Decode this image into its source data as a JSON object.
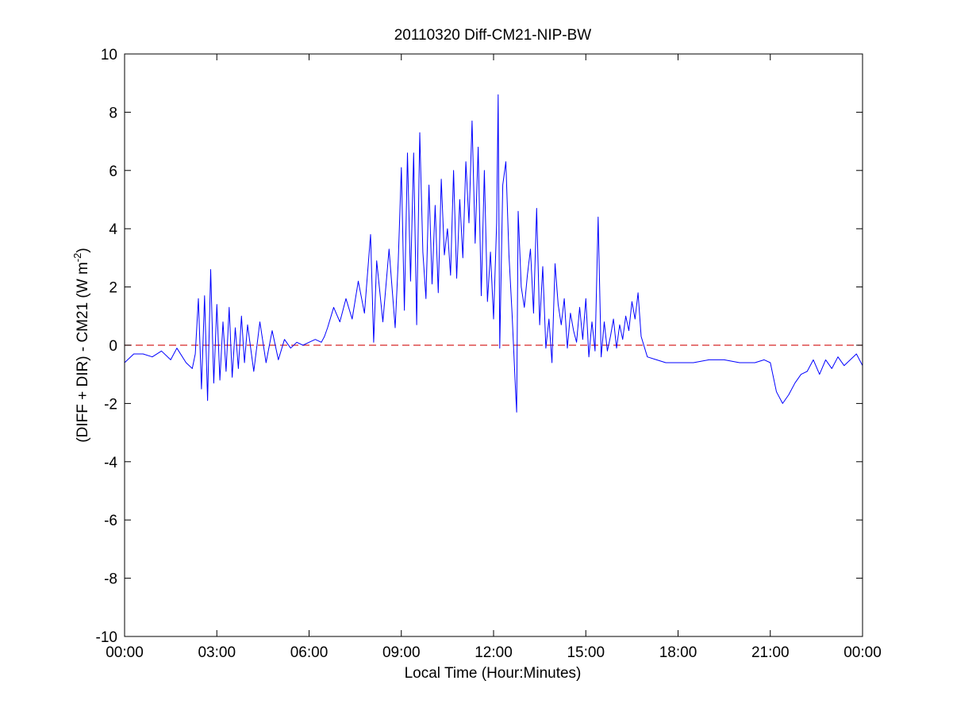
{
  "chart_data": {
    "type": "line",
    "title": "20110320 Diff-CM21-NIP-BW",
    "xlabel": "Local Time (Hour:Minutes)",
    "ylabel": "(DIFF + DIR) - CM21 (W m",
    "ylabel_superscript": "-2",
    "ylabel_suffix": ")",
    "xlim": [
      0,
      24
    ],
    "ylim": [
      -10,
      10
    ],
    "x_ticks": [
      0,
      3,
      6,
      9,
      12,
      15,
      18,
      21,
      24
    ],
    "x_tick_labels": [
      "00:00",
      "03:00",
      "06:00",
      "09:00",
      "12:00",
      "15:00",
      "18:00",
      "21:00",
      "00:00"
    ],
    "y_ticks": [
      -10,
      -8,
      -6,
      -4,
      -2,
      0,
      2,
      4,
      6,
      8,
      10
    ],
    "y_tick_labels": [
      "-10",
      "-8",
      "-6",
      "-4",
      "-2",
      "0",
      "2",
      "4",
      "6",
      "8",
      "10"
    ],
    "grid": false,
    "reference_line": {
      "y": 0,
      "style": "dashed",
      "color": "#d62728"
    },
    "series": [
      {
        "color": "#0000ff",
        "x": [
          0.0,
          0.3,
          0.6,
          0.9,
          1.2,
          1.5,
          1.7,
          2.0,
          2.2,
          2.3,
          2.4,
          2.5,
          2.6,
          2.7,
          2.8,
          2.9,
          3.0,
          3.1,
          3.2,
          3.3,
          3.4,
          3.5,
          3.6,
          3.7,
          3.8,
          3.9,
          4.0,
          4.2,
          4.4,
          4.6,
          4.8,
          5.0,
          5.2,
          5.4,
          5.6,
          5.8,
          6.0,
          6.2,
          6.4,
          6.5,
          6.6,
          6.8,
          7.0,
          7.2,
          7.4,
          7.6,
          7.8,
          8.0,
          8.1,
          8.2,
          8.4,
          8.6,
          8.8,
          8.9,
          9.0,
          9.1,
          9.2,
          9.3,
          9.4,
          9.5,
          9.6,
          9.7,
          9.8,
          9.9,
          10.0,
          10.1,
          10.2,
          10.3,
          10.4,
          10.5,
          10.6,
          10.7,
          10.8,
          10.9,
          11.0,
          11.1,
          11.2,
          11.3,
          11.4,
          11.5,
          11.6,
          11.7,
          11.8,
          11.9,
          12.0,
          12.1,
          12.15,
          12.2,
          12.3,
          12.4,
          12.5,
          12.6,
          12.7,
          12.75,
          12.8,
          12.9,
          13.0,
          13.1,
          13.2,
          13.3,
          13.4,
          13.5,
          13.6,
          13.7,
          13.8,
          13.9,
          14.0,
          14.1,
          14.2,
          14.3,
          14.4,
          14.5,
          14.6,
          14.7,
          14.8,
          14.9,
          15.0,
          15.1,
          15.2,
          15.3,
          15.4,
          15.5,
          15.6,
          15.7,
          15.8,
          15.9,
          16.0,
          16.1,
          16.2,
          16.3,
          16.4,
          16.5,
          16.6,
          16.7,
          16.8,
          17.0,
          17.3,
          17.6,
          18.0,
          18.5,
          19.0,
          19.5,
          20.0,
          20.5,
          20.8,
          21.0,
          21.2,
          21.4,
          21.6,
          21.8,
          22.0,
          22.2,
          22.4,
          22.6,
          22.8,
          23.0,
          23.2,
          23.4,
          23.6,
          23.8,
          24.0
        ],
        "y": [
          -0.6,
          -0.3,
          -0.3,
          -0.4,
          -0.2,
          -0.5,
          -0.1,
          -0.6,
          -0.8,
          -0.3,
          1.6,
          -1.5,
          1.7,
          -1.9,
          2.6,
          -1.3,
          1.4,
          -1.2,
          0.8,
          -0.9,
          1.3,
          -1.1,
          0.6,
          -0.8,
          1.0,
          -0.6,
          0.7,
          -0.9,
          0.8,
          -0.6,
          0.5,
          -0.5,
          0.2,
          -0.1,
          0.1,
          0.0,
          0.1,
          0.2,
          0.1,
          0.3,
          0.6,
          1.3,
          0.8,
          1.6,
          0.9,
          2.2,
          1.1,
          3.8,
          0.1,
          2.9,
          0.8,
          3.3,
          0.6,
          2.9,
          6.1,
          1.2,
          6.6,
          2.2,
          6.6,
          0.7,
          7.3,
          3.2,
          1.6,
          5.5,
          2.1,
          4.8,
          1.8,
          5.7,
          3.1,
          4.0,
          2.4,
          6.0,
          2.3,
          5.0,
          3.0,
          6.3,
          4.2,
          7.7,
          3.5,
          6.8,
          1.7,
          6.0,
          1.5,
          3.2,
          0.9,
          4.2,
          8.6,
          -0.1,
          5.5,
          6.3,
          3.1,
          1.1,
          -1.2,
          -2.3,
          4.6,
          2.0,
          1.3,
          2.4,
          3.3,
          1.1,
          4.7,
          0.7,
          2.7,
          -0.1,
          0.9,
          -0.6,
          2.8,
          1.4,
          0.7,
          1.6,
          -0.1,
          1.1,
          0.5,
          0.1,
          1.3,
          0.2,
          1.6,
          -0.4,
          0.8,
          -0.2,
          4.4,
          -0.4,
          0.8,
          -0.2,
          0.3,
          0.9,
          -0.1,
          0.7,
          0.2,
          1.0,
          0.5,
          1.5,
          0.9,
          1.8,
          0.3,
          -0.4,
          -0.5,
          -0.6,
          -0.6,
          -0.6,
          -0.5,
          -0.5,
          -0.6,
          -0.6,
          -0.5,
          -0.6,
          -1.6,
          -2.0,
          -1.7,
          -1.3,
          -1.0,
          -0.9,
          -0.5,
          -1.0,
          -0.5,
          -0.8,
          -0.4,
          -0.7,
          -0.5,
          -0.3,
          -0.7
        ]
      }
    ]
  }
}
